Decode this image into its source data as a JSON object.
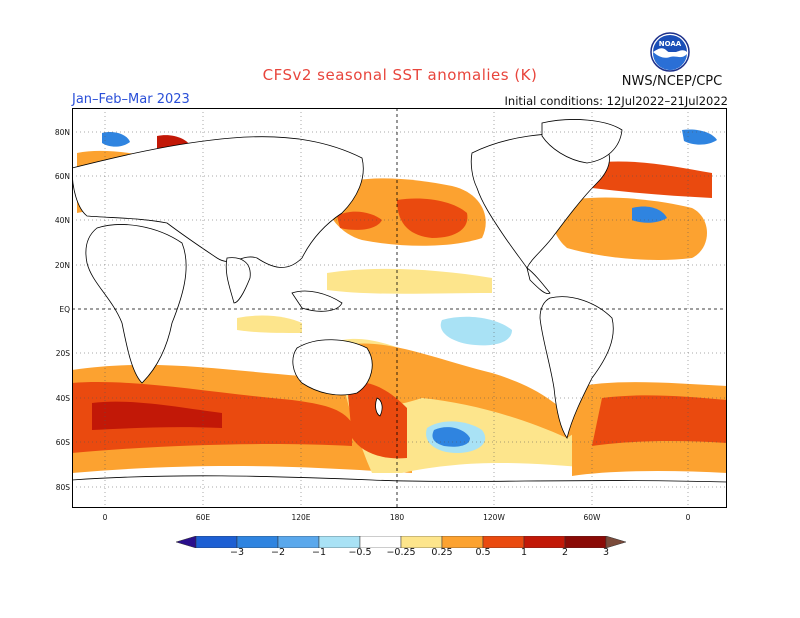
{
  "title": "CFSv2 seasonal SST anomalies (K)",
  "season": "Jan–Feb–Mar 2023",
  "initial_conditions": "Initial conditions: 12Jul2022–21Jul2022",
  "agency": "NWS/NCEP/CPC",
  "logo": {
    "icon": "noaa-logo-icon",
    "text": "NOAA"
  },
  "map": {
    "lat_labels": [
      "80N",
      "60N",
      "40N",
      "20N",
      "EQ",
      "20S",
      "40S",
      "60S",
      "80S"
    ],
    "lon_labels": [
      "0",
      "60E",
      "120E",
      "180",
      "120W",
      "60W",
      "0"
    ]
  },
  "colorbar": {
    "labels": [
      "−3",
      "−2",
      "−1",
      "−0.5",
      "−0.25",
      "0.25",
      "0.5",
      "1",
      "2",
      "3"
    ],
    "colors": [
      "#2a0f8c",
      "#1d5fd3",
      "#2f84e0",
      "#5aa8ec",
      "#a9e2f5",
      "#ffffff",
      "#fde58c",
      "#fca230",
      "#ea4a0f",
      "#c21807",
      "#8a0a06",
      "#7a4a3a"
    ]
  }
}
